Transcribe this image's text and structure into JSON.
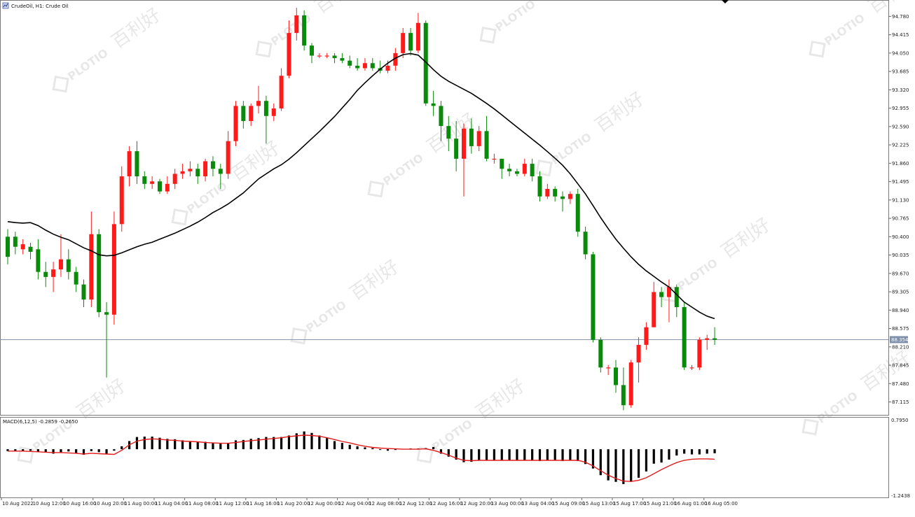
{
  "header": {
    "title": "CrudeOil, H1: Crude Oil",
    "icon": "chart-window-icon"
  },
  "price_panel": {
    "current_price_label": "88.354",
    "current_price": 88.354,
    "axis_labels": [
      "94.780",
      "94.415",
      "94.050",
      "93.685",
      "93.320",
      "92.955",
      "92.590",
      "92.225",
      "91.860",
      "91.495",
      "91.130",
      "90.765",
      "90.400",
      "90.035",
      "89.670",
      "89.305",
      "88.940",
      "88.575",
      "88.210",
      "87.845",
      "87.480",
      "87.115"
    ]
  },
  "macd_panel": {
    "title": "MACD(6,12,5) -0.2859 -0.2650",
    "axis_labels": [
      "0.7950",
      "-1.2438"
    ]
  },
  "time_axis": {
    "labels": [
      "10 Aug 2022",
      "10 Aug 12:00",
      "10 Aug 16:00",
      "10 Aug 20:00",
      "11 Aug 00:00",
      "11 Aug 04:00",
      "11 Aug 08:00",
      "11 Aug 12:00",
      "11 Aug 16:00",
      "11 Aug 20:00",
      "12 Aug 00:00",
      "12 Aug 04:00",
      "12 Aug 08:00",
      "12 Aug 12:00",
      "12 Aug 16:00",
      "12 Aug 20:00",
      "13 Aug 00:00",
      "13 Aug 04:00",
      "15 Aug 09:00",
      "15 Aug 13:00",
      "15 Aug 17:00",
      "15 Aug 21:00",
      "16 Aug 01:00",
      "16 Aug 05:00"
    ]
  },
  "watermark": {
    "brand": "PLOTIO",
    "cjk": "百利好"
  },
  "colors": {
    "bull": "#ff1a1a",
    "bear": "#0a8a0a",
    "ma": "#000000",
    "macd_signal": "#e31b1b",
    "price_line": "#8a95b0",
    "price_label_bg": "#7f8faa"
  },
  "chart_data": [
    {
      "type": "candlestick",
      "ylim": [
        86.9,
        95.05
      ],
      "candles": [
        [
          90.4,
          90.0,
          90.55,
          89.85
        ],
        [
          90.4,
          90.2,
          90.5,
          90.05
        ],
        [
          90.15,
          90.25,
          90.35,
          90.05
        ],
        [
          90.2,
          90.1,
          90.28,
          89.95
        ],
        [
          90.15,
          89.7,
          90.35,
          89.55
        ],
        [
          89.7,
          89.6,
          89.9,
          89.4
        ],
        [
          89.6,
          89.75,
          89.9,
          89.3
        ],
        [
          89.75,
          89.95,
          90.45,
          89.6
        ],
        [
          89.95,
          89.7,
          90.15,
          89.55
        ],
        [
          89.7,
          89.45,
          89.8,
          89.3
        ],
        [
          89.45,
          89.15,
          89.55,
          89.0
        ],
        [
          89.15,
          90.45,
          90.9,
          89.0
        ],
        [
          90.45,
          88.9,
          90.55,
          88.8
        ],
        [
          88.9,
          88.85,
          89.1,
          87.6
        ],
        [
          88.85,
          90.65,
          90.9,
          88.65
        ],
        [
          90.65,
          91.6,
          91.8,
          90.5
        ],
        [
          91.6,
          92.1,
          92.2,
          91.4
        ],
        [
          92.1,
          91.6,
          92.3,
          91.45
        ],
        [
          91.6,
          91.45,
          91.7,
          91.35
        ],
        [
          91.45,
          91.5,
          91.6,
          91.35
        ],
        [
          91.5,
          91.3,
          91.55,
          91.25
        ],
        [
          91.3,
          91.45,
          91.6,
          91.25
        ],
        [
          91.45,
          91.65,
          91.75,
          91.35
        ],
        [
          91.65,
          91.7,
          91.85,
          91.55
        ],
        [
          91.7,
          91.75,
          91.9,
          91.6
        ],
        [
          91.75,
          91.6,
          91.85,
          91.45
        ],
        [
          91.6,
          91.9,
          91.95,
          91.5
        ],
        [
          91.9,
          91.75,
          92.0,
          91.6
        ],
        [
          91.75,
          91.65,
          91.85,
          91.35
        ],
        [
          91.65,
          92.3,
          92.5,
          91.55
        ],
        [
          92.3,
          93.0,
          93.1,
          92.2
        ],
        [
          93.0,
          92.7,
          93.1,
          92.55
        ],
        [
          92.7,
          93.0,
          93.05,
          92.6
        ],
        [
          93.0,
          93.1,
          93.4,
          92.85
        ],
        [
          93.1,
          92.8,
          93.2,
          92.25
        ],
        [
          92.8,
          92.95,
          93.05,
          92.7
        ],
        [
          92.95,
          93.6,
          93.75,
          92.9
        ],
        [
          93.6,
          94.45,
          94.7,
          93.55
        ],
        [
          94.45,
          94.8,
          94.95,
          94.3
        ],
        [
          94.8,
          94.2,
          94.9,
          94.1
        ],
        [
          94.2,
          94.0,
          94.25,
          93.85
        ],
        [
          94.0,
          94.0,
          94.05,
          93.95
        ],
        [
          94.0,
          94.0,
          94.05,
          93.95
        ],
        [
          94.0,
          93.95,
          94.05,
          93.85
        ],
        [
          93.95,
          93.9,
          94.05,
          93.85
        ],
        [
          93.9,
          93.8,
          94.0,
          93.75
        ],
        [
          93.8,
          93.75,
          93.95,
          93.7
        ],
        [
          93.75,
          93.85,
          93.95,
          93.7
        ],
        [
          93.85,
          93.75,
          93.95,
          93.7
        ],
        [
          93.75,
          93.7,
          93.9,
          93.65
        ],
        [
          93.7,
          93.8,
          93.9,
          93.65
        ],
        [
          93.8,
          94.05,
          94.15,
          93.7
        ],
        [
          94.05,
          94.45,
          94.55,
          93.95
        ],
        [
          94.45,
          94.1,
          94.55,
          94.0
        ],
        [
          94.1,
          94.65,
          94.85,
          94.05
        ],
        [
          94.65,
          93.05,
          94.7,
          93.0
        ],
        [
          93.05,
          93.0,
          93.3,
          92.8
        ],
        [
          93.0,
          92.6,
          93.1,
          92.3
        ],
        [
          92.6,
          92.35,
          92.8,
          92.1
        ],
        [
          92.35,
          91.95,
          92.7,
          91.7
        ],
        [
          91.95,
          92.55,
          92.65,
          91.2
        ],
        [
          92.55,
          92.2,
          92.75,
          92.05
        ],
        [
          92.2,
          92.5,
          92.6,
          92.1
        ],
        [
          92.5,
          91.95,
          92.8,
          91.9
        ],
        [
          91.95,
          91.95,
          92.05,
          91.85
        ],
        [
          91.95,
          91.75,
          91.95,
          91.55
        ],
        [
          91.75,
          91.7,
          91.85,
          91.6
        ],
        [
          91.7,
          91.65,
          91.75,
          91.6
        ],
        [
          91.65,
          91.85,
          91.95,
          91.6
        ],
        [
          91.85,
          91.6,
          91.95,
          91.5
        ],
        [
          91.6,
          91.2,
          91.7,
          91.1
        ],
        [
          91.2,
          91.35,
          91.45,
          91.15
        ],
        [
          91.35,
          91.2,
          91.4,
          91.1
        ],
        [
          91.2,
          91.15,
          91.3,
          90.9
        ],
        [
          91.15,
          91.25,
          91.3,
          91.05
        ],
        [
          91.25,
          90.5,
          91.35,
          90.4
        ],
        [
          90.5,
          90.05,
          90.6,
          89.95
        ],
        [
          90.05,
          88.35,
          90.1,
          88.3
        ],
        [
          88.35,
          87.8,
          88.4,
          87.7
        ],
        [
          87.8,
          87.8,
          87.85,
          87.65
        ],
        [
          87.8,
          87.45,
          87.95,
          87.3
        ],
        [
          87.45,
          87.05,
          87.8,
          86.95
        ],
        [
          87.05,
          87.9,
          87.95,
          87.0
        ],
        [
          87.9,
          88.25,
          88.4,
          87.5
        ],
        [
          88.25,
          88.6,
          88.7,
          88.15
        ],
        [
          88.6,
          89.3,
          89.5,
          88.6
        ],
        [
          89.3,
          89.2,
          89.4,
          89.0
        ],
        [
          89.2,
          89.4,
          89.55,
          88.7
        ],
        [
          89.4,
          89.0,
          89.45,
          88.8
        ],
        [
          89.0,
          87.8,
          89.1,
          87.75
        ],
        [
          87.8,
          87.8,
          87.85,
          87.75
        ],
        [
          87.8,
          88.35,
          88.4,
          87.75
        ],
        [
          88.35,
          88.38,
          88.45,
          88.15
        ],
        [
          88.38,
          88.35,
          88.6,
          88.25
        ]
      ],
      "moving_average": [
        90.7,
        90.68,
        90.67,
        90.68,
        90.62,
        90.53,
        90.45,
        90.39,
        90.34,
        90.26,
        90.18,
        90.12,
        90.04,
        90.02,
        90.03,
        90.08,
        90.14,
        90.2,
        90.25,
        90.29,
        90.35,
        90.41,
        90.47,
        90.54,
        90.61,
        90.69,
        90.78,
        90.88,
        90.96,
        91.05,
        91.16,
        91.27,
        91.41,
        91.55,
        91.65,
        91.75,
        91.83,
        91.94,
        92.07,
        92.21,
        92.35,
        92.49,
        92.64,
        92.79,
        92.96,
        93.13,
        93.31,
        93.46,
        93.6,
        93.73,
        93.85,
        93.95,
        94.02,
        94.04,
        94.01,
        93.87,
        93.72,
        93.59,
        93.49,
        93.41,
        93.33,
        93.25,
        93.15,
        93.05,
        92.94,
        92.82,
        92.7,
        92.58,
        92.46,
        92.34,
        92.22,
        92.09,
        91.96,
        91.82,
        91.65,
        91.45,
        91.25,
        91.02,
        90.78,
        90.56,
        90.35,
        90.17,
        90.0,
        89.85,
        89.72,
        89.61,
        89.5,
        89.4,
        89.25,
        89.1,
        89.0,
        88.9,
        88.82,
        88.77
      ]
    },
    {
      "type": "bar+line",
      "ylim": [
        -1.2438,
        0.795
      ],
      "histogram": [
        -0.05,
        -0.06,
        -0.05,
        -0.04,
        -0.07,
        -0.09,
        -0.12,
        -0.08,
        -0.06,
        -0.1,
        -0.15,
        -0.05,
        -0.08,
        -0.13,
        -0.04,
        0.08,
        0.22,
        0.33,
        0.34,
        0.34,
        0.31,
        0.28,
        0.27,
        0.24,
        0.22,
        0.2,
        0.2,
        0.18,
        0.15,
        0.17,
        0.24,
        0.25,
        0.28,
        0.3,
        0.33,
        0.33,
        0.33,
        0.37,
        0.43,
        0.48,
        0.44,
        0.37,
        0.3,
        0.22,
        0.17,
        0.12,
        0.08,
        0.05,
        0.03,
        -0.02,
        -0.04,
        -0.02,
        0.01,
        0.02,
        0.02,
        0.03,
        0.06,
        -0.12,
        -0.2,
        -0.28,
        -0.35,
        -0.34,
        -0.31,
        -0.3,
        -0.31,
        -0.3,
        -0.3,
        -0.31,
        -0.3,
        -0.31,
        -0.32,
        -0.3,
        -0.29,
        -0.32,
        -0.3,
        -0.32,
        -0.4,
        -0.52,
        -0.7,
        -0.84,
        -0.88,
        -0.94,
        -0.88,
        -0.77,
        -0.6,
        -0.39,
        -0.36,
        -0.28,
        -0.17,
        -0.12,
        -0.14,
        -0.14,
        -0.12,
        -0.11
      ],
      "signal": [
        -0.05,
        -0.05,
        -0.05,
        -0.06,
        -0.07,
        -0.08,
        -0.09,
        -0.09,
        -0.1,
        -0.11,
        -0.13,
        -0.11,
        -0.12,
        -0.13,
        -0.14,
        -0.03,
        0.12,
        0.22,
        0.26,
        0.28,
        0.27,
        0.25,
        0.24,
        0.22,
        0.21,
        0.2,
        0.18,
        0.17,
        0.16,
        0.16,
        0.18,
        0.21,
        0.23,
        0.25,
        0.27,
        0.29,
        0.31,
        0.34,
        0.36,
        0.38,
        0.37,
        0.35,
        0.31,
        0.26,
        0.21,
        0.17,
        0.12,
        0.08,
        0.05,
        0.03,
        0.02,
        0.01,
        0.0,
        0.0,
        0.0,
        0.01,
        -0.03,
        -0.09,
        -0.16,
        -0.24,
        -0.3,
        -0.31,
        -0.3,
        -0.3,
        -0.3,
        -0.3,
        -0.3,
        -0.3,
        -0.3,
        -0.3,
        -0.3,
        -0.3,
        -0.3,
        -0.3,
        -0.3,
        -0.3,
        -0.35,
        -0.45,
        -0.58,
        -0.7,
        -0.79,
        -0.86,
        -0.87,
        -0.84,
        -0.77,
        -0.66,
        -0.55,
        -0.45,
        -0.36,
        -0.3,
        -0.27,
        -0.26,
        -0.26,
        -0.27
      ]
    }
  ]
}
